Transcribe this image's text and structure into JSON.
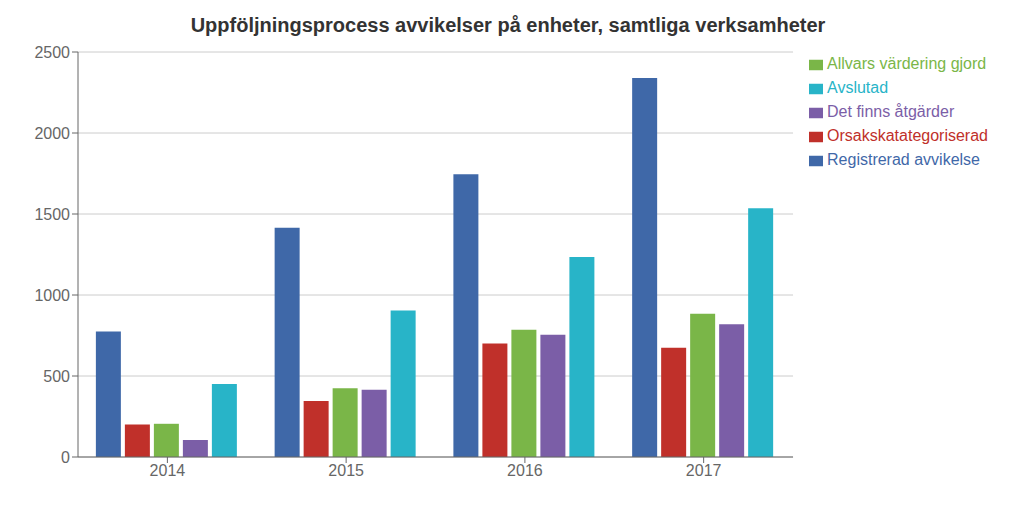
{
  "chart_data": {
    "type": "bar",
    "title": "Uppföljningsprocess avvikelser på enheter, samtliga verksamheter",
    "categories": [
      "2014",
      "2015",
      "2016",
      "2017"
    ],
    "series": [
      {
        "name": "Registrerad avvikelse",
        "color": "#3F68A8",
        "values": [
          775,
          1415,
          1745,
          2340
        ]
      },
      {
        "name": "Orsakskatategoriserad",
        "color": "#C0302A",
        "values": [
          200,
          345,
          700,
          675
        ]
      },
      {
        "name": "Allvars värdering gjord",
        "color": "#7AB648",
        "values": [
          205,
          425,
          785,
          885
        ]
      },
      {
        "name": "Det finns åtgärder",
        "color": "#7B5EA7",
        "values": [
          105,
          415,
          755,
          820
        ]
      },
      {
        "name": "Avslutad",
        "color": "#28B4C8",
        "values": [
          450,
          905,
          1235,
          1535
        ]
      }
    ],
    "ylim": [
      0,
      2500
    ],
    "yticks": [
      0,
      500,
      1000,
      1500,
      2000,
      2500
    ],
    "grid": true,
    "legend": "upper right"
  }
}
